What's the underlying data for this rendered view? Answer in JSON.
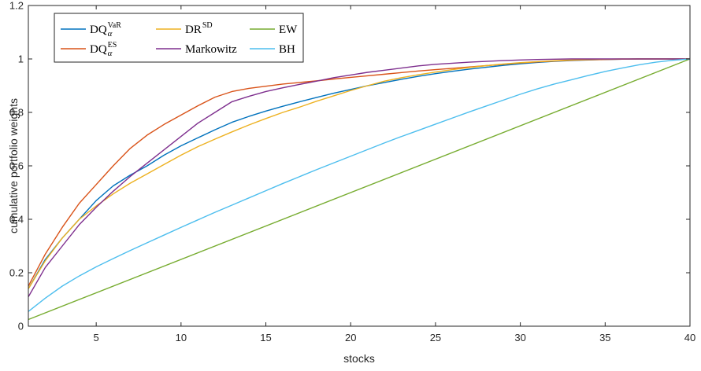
{
  "chart_data": {
    "type": "line",
    "title": "",
    "xlabel": "stocks",
    "ylabel": "cumulative portfolio weights",
    "xlim": [
      1,
      40
    ],
    "ylim": [
      0,
      1.2
    ],
    "x_ticks": [
      5,
      10,
      15,
      20,
      25,
      30,
      35,
      40
    ],
    "y_ticks": [
      0,
      0.2,
      0.4,
      0.6,
      0.8,
      1,
      1.2
    ],
    "x_tick_labels": [
      "5",
      "10",
      "15",
      "20",
      "25",
      "30",
      "35",
      "40"
    ],
    "y_tick_labels": [
      "0",
      "0.2",
      "0.4",
      "0.6",
      "0.8",
      "1",
      "1.2"
    ],
    "grid": false,
    "legend_position": "top-left",
    "series": [
      {
        "name": "DQ",
        "sup": "VaR",
        "sub": "α",
        "color": "#0072BD",
        "x": [
          1,
          2,
          3,
          4,
          5,
          6,
          7,
          8,
          9,
          10,
          11,
          12,
          13,
          14,
          15,
          16,
          17,
          18,
          19,
          20,
          21,
          22,
          23,
          24,
          25,
          26,
          27,
          28,
          29,
          30,
          31,
          32,
          33,
          34,
          35,
          36,
          37,
          38,
          39,
          40
        ],
        "y": [
          0.14,
          0.25,
          0.33,
          0.4,
          0.47,
          0.525,
          0.565,
          0.6,
          0.64,
          0.675,
          0.705,
          0.735,
          0.763,
          0.785,
          0.805,
          0.823,
          0.84,
          0.856,
          0.872,
          0.886,
          0.9,
          0.912,
          0.924,
          0.935,
          0.945,
          0.954,
          0.962,
          0.969,
          0.976,
          0.982,
          0.987,
          0.991,
          0.994,
          0.996,
          0.998,
          0.999,
          1.0,
          1.0,
          1.0,
          1.0
        ]
      },
      {
        "name": "DQ",
        "sup": "ES",
        "sub": "α",
        "color": "#D95319",
        "x": [
          1,
          2,
          3,
          4,
          5,
          6,
          7,
          8,
          9,
          10,
          11,
          12,
          13,
          14,
          15,
          16,
          17,
          18,
          19,
          20,
          21,
          22,
          23,
          24,
          25,
          26,
          27,
          28,
          29,
          30,
          31,
          32,
          33,
          34,
          35,
          36,
          37,
          38,
          39,
          40
        ],
        "y": [
          0.15,
          0.27,
          0.37,
          0.46,
          0.53,
          0.6,
          0.665,
          0.715,
          0.755,
          0.79,
          0.825,
          0.857,
          0.878,
          0.89,
          0.898,
          0.906,
          0.912,
          0.918,
          0.925,
          0.931,
          0.937,
          0.943,
          0.949,
          0.955,
          0.96,
          0.965,
          0.97,
          0.975,
          0.98,
          0.985,
          0.989,
          0.992,
          0.995,
          0.997,
          0.998,
          0.999,
          1.0,
          1.0,
          1.0,
          1.0
        ]
      },
      {
        "name": "DR",
        "sup": "SD",
        "sub": "",
        "color": "#EDB120",
        "x": [
          1,
          2,
          3,
          4,
          5,
          6,
          7,
          8,
          9,
          10,
          11,
          12,
          13,
          14,
          15,
          16,
          17,
          18,
          19,
          20,
          21,
          22,
          23,
          24,
          25,
          26,
          27,
          28,
          29,
          30,
          31,
          32,
          33,
          34,
          35,
          36,
          37,
          38,
          39,
          40
        ],
        "y": [
          0.14,
          0.245,
          0.33,
          0.4,
          0.45,
          0.495,
          0.535,
          0.57,
          0.605,
          0.64,
          0.672,
          0.7,
          0.727,
          0.753,
          0.777,
          0.8,
          0.82,
          0.842,
          0.862,
          0.882,
          0.9,
          0.917,
          0.93,
          0.941,
          0.951,
          0.96,
          0.968,
          0.975,
          0.981,
          0.986,
          0.99,
          0.993,
          0.996,
          0.998,
          0.999,
          1.0,
          1.0,
          1.0,
          1.0,
          1.0
        ]
      },
      {
        "name": "Markowitz",
        "sup": "",
        "sub": "",
        "color": "#7E2F8E",
        "x": [
          1,
          2,
          3,
          4,
          5,
          6,
          7,
          8,
          9,
          10,
          11,
          12,
          13,
          14,
          15,
          16,
          17,
          18,
          19,
          20,
          21,
          22,
          23,
          24,
          25,
          26,
          27,
          28,
          29,
          30,
          31,
          32,
          33,
          34,
          35,
          36,
          37,
          38,
          39,
          40
        ],
        "y": [
          0.11,
          0.22,
          0.3,
          0.38,
          0.445,
          0.505,
          0.56,
          0.61,
          0.66,
          0.71,
          0.76,
          0.8,
          0.84,
          0.86,
          0.878,
          0.892,
          0.905,
          0.917,
          0.93,
          0.94,
          0.95,
          0.958,
          0.966,
          0.974,
          0.98,
          0.984,
          0.988,
          0.991,
          0.994,
          0.996,
          0.998,
          0.999,
          1.0,
          1.0,
          1.0,
          1.0,
          1.0,
          1.0,
          1.0,
          1.0
        ]
      },
      {
        "name": "EW",
        "sup": "",
        "sub": "",
        "color": "#77AC30",
        "x": [
          1,
          40
        ],
        "y": [
          0.025,
          1.0
        ]
      },
      {
        "name": "BH",
        "sup": "",
        "sub": "",
        "color": "#4DBEEE",
        "x": [
          1,
          2,
          3,
          4,
          5,
          6,
          7,
          8,
          9,
          10,
          11,
          12,
          13,
          14,
          15,
          16,
          17,
          18,
          19,
          20,
          21,
          22,
          23,
          24,
          25,
          26,
          27,
          28,
          29,
          30,
          31,
          32,
          33,
          34,
          35,
          36,
          37,
          38,
          39,
          40
        ],
        "y": [
          0.055,
          0.105,
          0.15,
          0.188,
          0.222,
          0.253,
          0.283,
          0.312,
          0.341,
          0.37,
          0.398,
          0.426,
          0.453,
          0.48,
          0.507,
          0.534,
          0.56,
          0.586,
          0.611,
          0.636,
          0.661,
          0.686,
          0.71,
          0.733,
          0.756,
          0.779,
          0.802,
          0.824,
          0.846,
          0.868,
          0.888,
          0.906,
          0.922,
          0.938,
          0.953,
          0.966,
          0.978,
          0.988,
          0.995,
          1.0
        ]
      }
    ]
  }
}
